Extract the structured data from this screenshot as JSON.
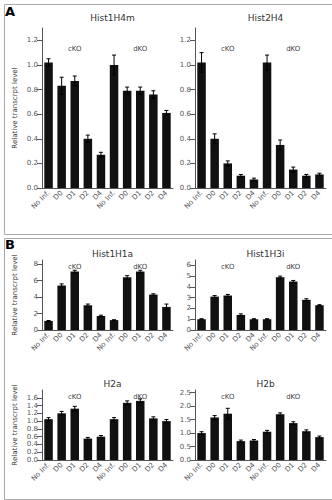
{
  "chart_data": [
    {
      "type": "bar",
      "title": "Hist1H4m",
      "panel_label": "A",
      "ylabel": "Relative transcrpt level",
      "categories": [
        "No Inf.",
        "D0",
        "D1",
        "D2",
        "D4",
        "No Inf.",
        "D0",
        "D1",
        "D2",
        "D4"
      ],
      "values": [
        1.02,
        0.83,
        0.87,
        0.4,
        0.27,
        1.0,
        0.79,
        0.79,
        0.76,
        0.61
      ],
      "errors": [
        0.03,
        0.07,
        0.04,
        0.03,
        0.02,
        0.08,
        0.03,
        0.03,
        0.03,
        0.02
      ],
      "color": "#111111",
      "ylim": [
        0,
        1.3
      ],
      "yticks": [
        {
          "value": 0,
          "label": "0.0"
        },
        0.2,
        0.4,
        0.6,
        0.8,
        {
          "value": 1,
          "label": "1.0"
        },
        1.2
      ],
      "annotations": [
        "cKO",
        "dKO"
      ],
      "grid": false
    },
    {
      "type": "bar",
      "title": "Hist2H4",
      "categories": [
        "No Inf.",
        "D0",
        "D1",
        "D2",
        "D4",
        "No Inf.",
        "D0",
        "D1",
        "D2",
        "D4"
      ],
      "values": [
        1.02,
        0.4,
        0.2,
        0.1,
        0.07,
        1.02,
        0.35,
        0.15,
        0.1,
        0.11
      ],
      "errors": [
        0.08,
        0.04,
        0.02,
        0.01,
        0.01,
        0.06,
        0.04,
        0.02,
        0.01,
        0.01
      ],
      "color": "#111111",
      "ylim": [
        0,
        1.3
      ],
      "yticks": [
        {
          "value": 0,
          "label": "0.0"
        },
        0.2,
        0.4,
        0.6,
        0.8,
        {
          "value": 1,
          "label": "1.0"
        },
        1.2
      ],
      "annotations": [
        "cKO",
        "dKO"
      ],
      "grid": false
    },
    {
      "type": "bar",
      "title": "Hist1H1a",
      "panel_label": "B",
      "ylabel": "Relative transcrpt level",
      "categories": [
        "No Inf.",
        "D0",
        "D1",
        "D2",
        "D4",
        "No Inf.",
        "D0",
        "D1",
        "D2",
        "D4"
      ],
      "values": [
        1.1,
        5.4,
        7.1,
        3.0,
        1.7,
        1.2,
        6.4,
        7.1,
        4.3,
        2.8
      ],
      "errors": [
        0.05,
        0.2,
        0.15,
        0.15,
        0.1,
        0.05,
        0.2,
        0.15,
        0.1,
        0.35
      ],
      "color": "#111111",
      "ylim": [
        0,
        8.5
      ],
      "yticks": [
        0,
        2,
        4,
        6,
        8
      ],
      "annotations": [
        "cKO",
        "dKO"
      ],
      "grid": false
    },
    {
      "type": "bar",
      "title": "Hist1H3i",
      "categories": [
        "No Inf.",
        "D0",
        "D1",
        "D2",
        "D4",
        "No Inf.",
        "D0",
        "D1",
        "D2",
        "D4"
      ],
      "values": [
        1.0,
        3.1,
        3.2,
        1.4,
        1.0,
        1.0,
        4.9,
        4.5,
        2.8,
        2.3
      ],
      "errors": [
        0.05,
        0.1,
        0.1,
        0.1,
        0.05,
        0.05,
        0.1,
        0.1,
        0.1,
        0.05
      ],
      "color": "#111111",
      "ylim": [
        0,
        6.5
      ],
      "yticks": [
        0,
        1,
        2,
        3,
        4,
        5,
        6
      ],
      "annotations": [
        "cKO",
        "dKO"
      ],
      "grid": false
    },
    {
      "type": "bar",
      "title": "H2a",
      "ylabel": "Relative transcrpt level",
      "categories": [
        "No Inf.",
        "D0",
        "D1",
        "D2",
        "D4",
        "No Inf.",
        "D0",
        "D1",
        "D2",
        "D4"
      ],
      "values": [
        1.05,
        1.2,
        1.32,
        0.55,
        0.6,
        1.05,
        1.47,
        1.52,
        1.07,
        1.0
      ],
      "errors": [
        0.04,
        0.05,
        0.06,
        0.03,
        0.03,
        0.04,
        0.05,
        0.05,
        0.04,
        0.04
      ],
      "color": "#111111",
      "ylim": [
        0,
        1.8
      ],
      "yticks": [
        {
          "value": 0,
          "label": "0.0"
        },
        0.2,
        0.4,
        0.6,
        0.8,
        {
          "value": 1,
          "label": "1.0"
        },
        1.2,
        1.4,
        1.6
      ],
      "annotations": [
        "cKO",
        "dKO"
      ],
      "grid": false
    },
    {
      "type": "bar",
      "title": "H2b",
      "categories": [
        "No Inf.",
        "D0",
        "D1",
        "D2",
        "D4",
        "No Inf.",
        "D0",
        "D1",
        "D2",
        "D4"
      ],
      "values": [
        1.0,
        1.58,
        1.72,
        0.7,
        0.72,
        1.05,
        1.7,
        1.37,
        1.07,
        0.85
      ],
      "errors": [
        0.05,
        0.07,
        0.2,
        0.04,
        0.04,
        0.05,
        0.05,
        0.05,
        0.05,
        0.04
      ],
      "color": "#111111",
      "ylim": [
        0,
        2.6
      ],
      "yticks": [
        {
          "value": 0,
          "label": "0.0"
        },
        0.5,
        {
          "value": 1,
          "label": "1.0"
        },
        1.5,
        {
          "value": 2,
          "label": "2.0"
        },
        2.5
      ],
      "annotations": [
        "cKO",
        "dKO"
      ],
      "grid": false
    }
  ]
}
